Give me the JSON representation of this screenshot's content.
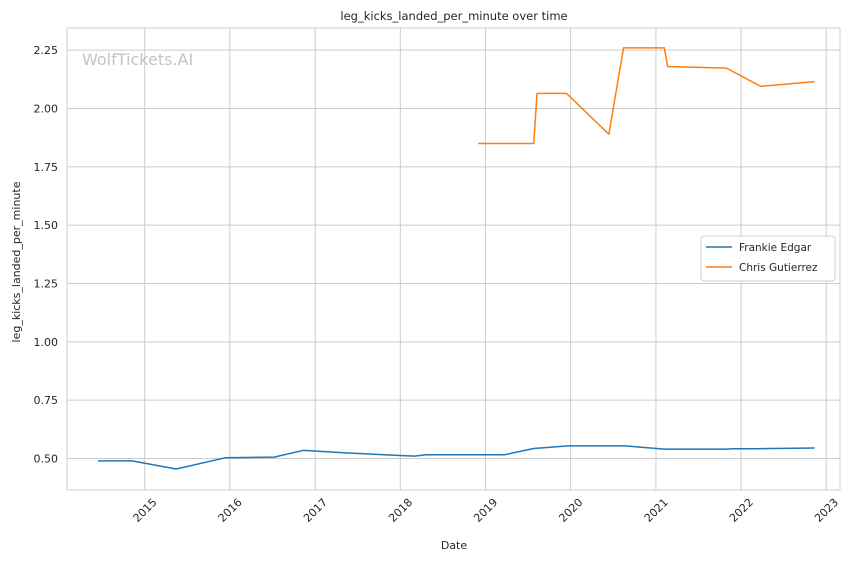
{
  "watermark": "WolfTickets.AI",
  "chart_data": {
    "type": "line",
    "title": "leg_kicks_landed_per_minute over time",
    "xlabel": "Date",
    "ylabel": "leg_kicks_landed_per_minute",
    "x_ticks": [
      "2015",
      "2016",
      "2017",
      "2018",
      "2019",
      "2020",
      "2021",
      "2022",
      "2023"
    ],
    "y_ticks": [
      "0.50",
      "0.75",
      "1.00",
      "1.25",
      "1.50",
      "1.75",
      "2.00",
      "2.25"
    ],
    "ylim": [
      0.365,
      2.345
    ],
    "xlim": [
      "2014-02-02",
      "2023-03-01"
    ],
    "grid": true,
    "legend_position": "center-right",
    "series": [
      {
        "name": "Frankie Edgar",
        "color": "#1f77b4",
        "points": [
          [
            "2014-06-15",
            0.49
          ],
          [
            "2014-11-08",
            0.49
          ],
          [
            "2015-05-16",
            0.455
          ],
          [
            "2015-12-12",
            0.503
          ],
          [
            "2016-07-09",
            0.506
          ],
          [
            "2016-11-12",
            0.535
          ],
          [
            "2017-05-13",
            0.524
          ],
          [
            "2018-03-03",
            0.51
          ],
          [
            "2018-04-21",
            0.516
          ],
          [
            "2019-03-23",
            0.516
          ],
          [
            "2019-07-27",
            0.543
          ],
          [
            "2019-12-21",
            0.554
          ],
          [
            "2020-08-22",
            0.554
          ],
          [
            "2021-02-06",
            0.54
          ],
          [
            "2021-11-06",
            0.54
          ],
          [
            "2021-11-20",
            0.542
          ],
          [
            "2022-03-12",
            0.542
          ],
          [
            "2022-11-12",
            0.545
          ]
        ]
      },
      {
        "name": "Chris Gutierrez",
        "color": "#ff7f0e",
        "points": [
          [
            "2018-12-01",
            1.85
          ],
          [
            "2019-07-27",
            1.85
          ],
          [
            "2019-08-10",
            2.065
          ],
          [
            "2019-12-14",
            2.065
          ],
          [
            "2020-06-13",
            1.89
          ],
          [
            "2020-08-15",
            2.26
          ],
          [
            "2021-02-06",
            2.26
          ],
          [
            "2021-02-20",
            2.18
          ],
          [
            "2021-10-30",
            2.173
          ],
          [
            "2022-03-26",
            2.095
          ],
          [
            "2022-11-12",
            2.115
          ]
        ]
      }
    ]
  }
}
